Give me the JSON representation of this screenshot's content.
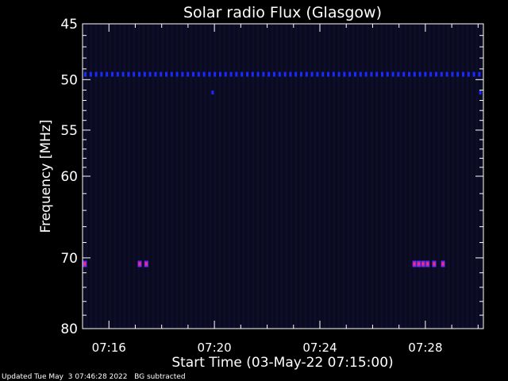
{
  "chart_data": {
    "type": "heatmap",
    "title": "Solar radio Flux (Glasgow)",
    "xlabel": "Start Time (03-May-22 07:15:00)",
    "ylabel": "Frequency [MHz]",
    "x_range_minutes": [
      "07:15:00",
      "07:30:12"
    ],
    "x_ticks": [
      "07:16",
      "07:20",
      "07:24",
      "07:28"
    ],
    "y_ticks": [
      45,
      50,
      55,
      60,
      70,
      80
    ],
    "ylim": [
      45,
      80
    ],
    "y_scale": "log",
    "background_color": "#0a0a20",
    "colors": {
      "interference_band": "#1a2aff",
      "burst_core": "#ff2a6a",
      "burst_edge": "#6a2aff"
    },
    "features": [
      {
        "kind": "interference_band",
        "freq_mhz": 49.5,
        "time_start": "07:15:00",
        "time_end": "07:30:12"
      },
      {
        "kind": "blip",
        "freq_mhz": 51.2,
        "time": "07:19:56"
      },
      {
        "kind": "blip",
        "freq_mhz": 51.2,
        "time": "07:30:05"
      },
      {
        "kind": "burst",
        "freq_mhz": 70.8,
        "times": [
          "07:15:05",
          "07:17:10",
          "07:17:25",
          "07:27:35",
          "07:27:45",
          "07:27:55",
          "07:28:05",
          "07:28:20",
          "07:28:40"
        ]
      }
    ],
    "grid": false,
    "legend": "none"
  },
  "footer": {
    "updated": "Updated Tue May  3 07:46:28 2022",
    "note": "BG subtracted"
  }
}
